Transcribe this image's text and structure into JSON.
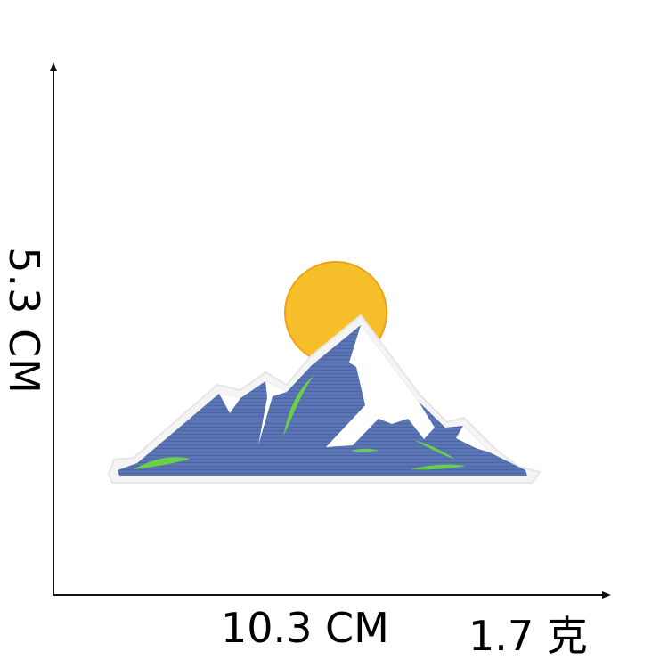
{
  "labels": {
    "height": "5.3 CM",
    "width": "10.3 CM",
    "weight": "1.7 克"
  },
  "colors": {
    "mountain": "#5a74b4",
    "sun": "#f6bf2a",
    "snow": "#ffffff",
    "grass": "#6ccf4a",
    "axis": "#111111"
  },
  "image": {
    "subject": "embroidered mountain patch with sun"
  }
}
